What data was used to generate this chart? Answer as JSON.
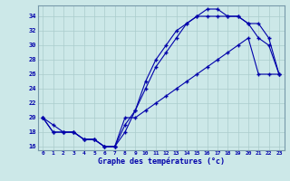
{
  "xlabel": "Graphe des températures (°c)",
  "background_color": "#cce8e8",
  "grid_color": "#aacccc",
  "line_color": "#0000aa",
  "xlim": [
    -0.5,
    23.5
  ],
  "ylim": [
    15.5,
    35.5
  ],
  "xticks": [
    0,
    1,
    2,
    3,
    4,
    5,
    6,
    7,
    8,
    9,
    10,
    11,
    12,
    13,
    14,
    15,
    16,
    17,
    18,
    19,
    20,
    21,
    22,
    23
  ],
  "yticks": [
    16,
    18,
    20,
    22,
    24,
    26,
    28,
    30,
    32,
    34
  ],
  "line1_x": [
    0,
    1,
    2,
    3,
    4,
    5,
    6,
    7,
    8,
    9,
    10,
    11,
    12,
    13,
    14,
    15,
    16,
    17,
    18,
    19,
    20,
    21,
    22,
    23
  ],
  "line1_y": [
    20,
    19,
    18,
    18,
    17,
    17,
    16,
    16,
    18,
    21,
    25,
    28,
    30,
    32,
    33,
    34,
    35,
    35,
    34,
    34,
    33,
    31,
    30,
    26
  ],
  "line2_x": [
    0,
    1,
    2,
    3,
    4,
    5,
    6,
    7,
    8,
    9,
    10,
    11,
    12,
    13,
    14,
    15,
    16,
    17,
    18,
    19,
    20,
    21,
    22,
    23
  ],
  "line2_y": [
    20,
    18,
    18,
    18,
    17,
    17,
    16,
    16,
    19,
    21,
    24,
    27,
    29,
    31,
    33,
    34,
    34,
    34,
    34,
    34,
    33,
    33,
    31,
    26
  ],
  "line3_x": [
    0,
    1,
    2,
    3,
    4,
    5,
    6,
    7,
    8,
    9,
    10,
    11,
    12,
    13,
    14,
    15,
    16,
    17,
    18,
    19,
    20,
    21,
    22,
    23
  ],
  "line3_y": [
    20,
    18,
    18,
    18,
    17,
    17,
    16,
    16,
    20,
    20,
    21,
    22,
    23,
    24,
    25,
    26,
    27,
    28,
    29,
    30,
    31,
    26,
    26,
    26
  ]
}
